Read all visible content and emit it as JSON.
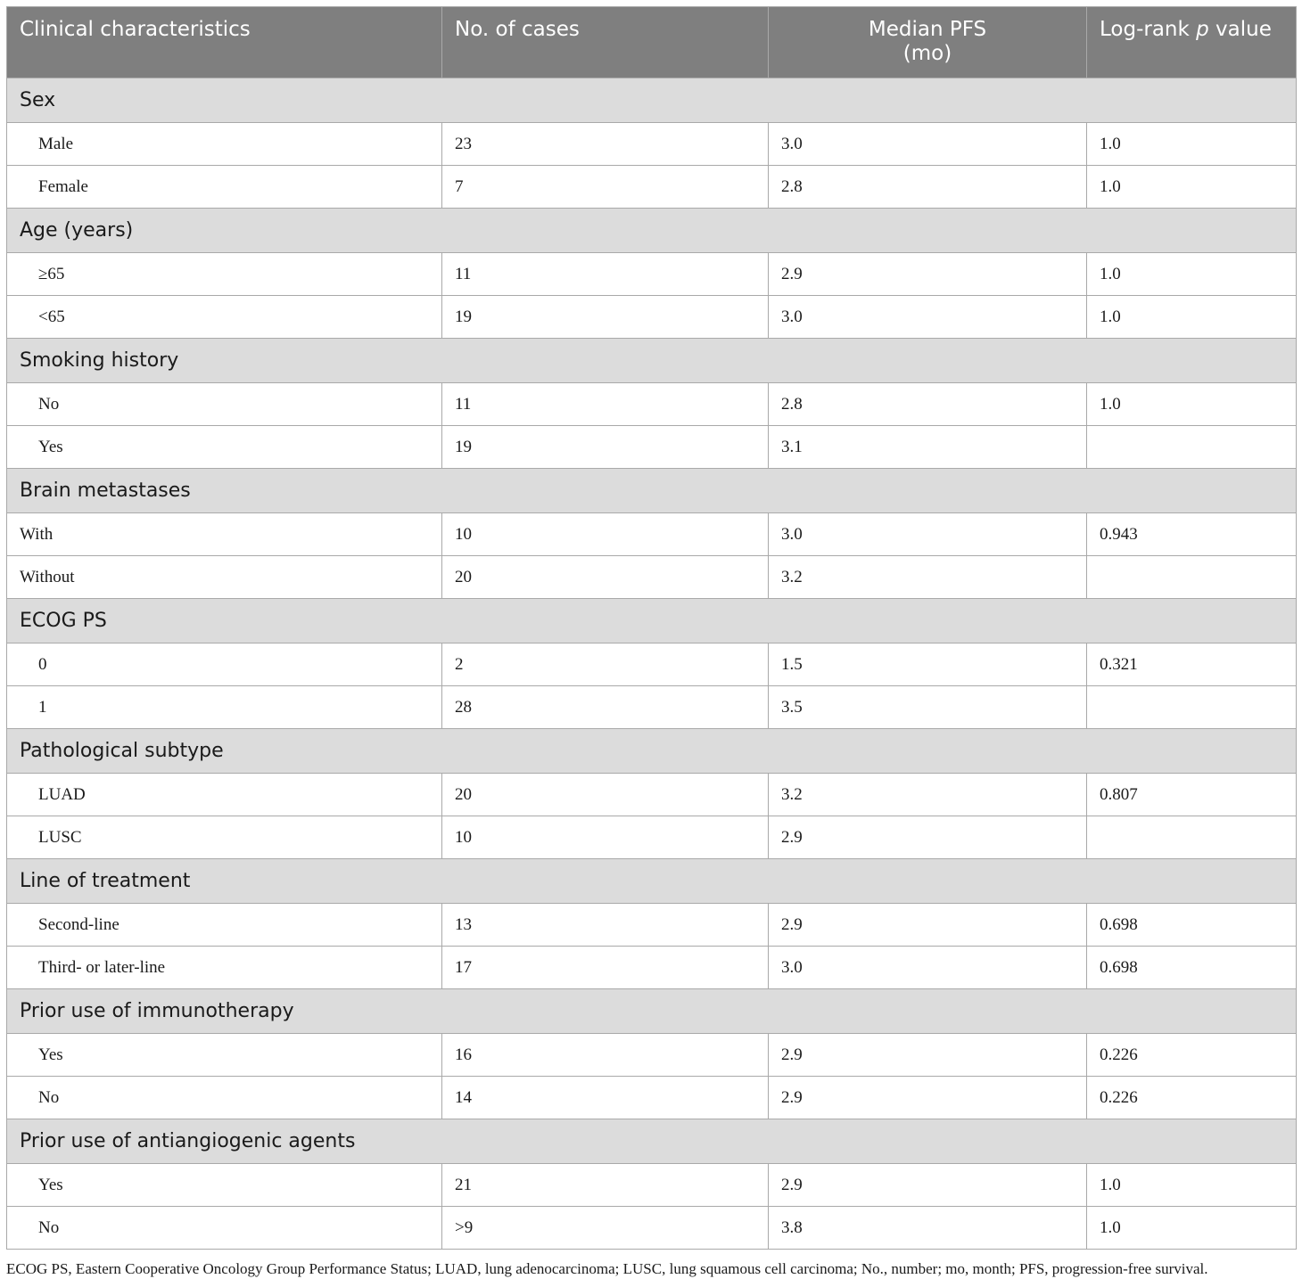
{
  "table": {
    "headers": {
      "characteristics": "Clinical characteristics",
      "cases": "No. of cases",
      "median_pfs_line1": "Median PFS",
      "median_pfs_line2": "(mo)",
      "pvalue_prefix": "Log-rank ",
      "pvalue_italic": "p",
      "pvalue_suffix": " value"
    },
    "groups": [
      {
        "label": "Sex",
        "rows": [
          {
            "name": "Male",
            "cases": "23",
            "pfs": "3.0",
            "p": "1.0",
            "indent": true
          },
          {
            "name": "Female",
            "cases": "7",
            "pfs": "2.8",
            "p": "1.0",
            "indent": true
          }
        ]
      },
      {
        "label": "Age (years)",
        "rows": [
          {
            "name": "≥65",
            "cases": "11",
            "pfs": "2.9",
            "p": "1.0",
            "indent": true
          },
          {
            "name": "<65",
            "cases": "19",
            "pfs": "3.0",
            "p": "1.0",
            "indent": true
          }
        ]
      },
      {
        "label": "Smoking history",
        "rows": [
          {
            "name": "No",
            "cases": "11",
            "pfs": "2.8",
            "p": "1.0",
            "indent": true
          },
          {
            "name": "Yes",
            "cases": "19",
            "pfs": "3.1",
            "p": "",
            "indent": true
          }
        ]
      },
      {
        "label": "Brain metastases",
        "rows": [
          {
            "name": "With",
            "cases": "10",
            "pfs": "3.0",
            "p": "0.943",
            "indent": false
          },
          {
            "name": "Without",
            "cases": "20",
            "pfs": "3.2",
            "p": "",
            "indent": false
          }
        ]
      },
      {
        "label": "ECOG PS",
        "rows": [
          {
            "name": "0",
            "cases": "2",
            "pfs": "1.5",
            "p": "0.321",
            "indent": true
          },
          {
            "name": "1",
            "cases": "28",
            "pfs": "3.5",
            "p": "",
            "indent": true
          }
        ]
      },
      {
        "label": "Pathological subtype",
        "rows": [
          {
            "name": "LUAD",
            "cases": "20",
            "pfs": "3.2",
            "p": "0.807",
            "indent": true
          },
          {
            "name": "LUSC",
            "cases": "10",
            "pfs": "2.9",
            "p": "",
            "indent": true
          }
        ]
      },
      {
        "label": "Line of treatment",
        "rows": [
          {
            "name": "Second-line",
            "cases": "13",
            "pfs": "2.9",
            "p": "0.698",
            "indent": true
          },
          {
            "name": "Third- or later-line",
            "cases": "17",
            "pfs": "3.0",
            "p": "0.698",
            "indent": true
          }
        ]
      },
      {
        "label": "Prior use of immunotherapy",
        "rows": [
          {
            "name": "Yes",
            "cases": "16",
            "pfs": "2.9",
            "p": "0.226",
            "indent": true
          },
          {
            "name": "No",
            "cases": "14",
            "pfs": "2.9",
            "p": "0.226",
            "indent": true
          }
        ]
      },
      {
        "label": "Prior use of antiangiogenic agents",
        "rows": [
          {
            "name": "Yes",
            "cases": "21",
            "pfs": "2.9",
            "p": "1.0",
            "indent": true
          },
          {
            "name": "No",
            "cases": ">9",
            "pfs": "3.8",
            "p": "1.0",
            "indent": true
          }
        ]
      }
    ]
  },
  "footnote": "ECOG PS, Eastern Cooperative Oncology Group Performance Status; LUAD, lung adenocarcinoma; LUSC, lung squamous cell carcinoma; No., number; mo, month; PFS, progression-free survival."
}
